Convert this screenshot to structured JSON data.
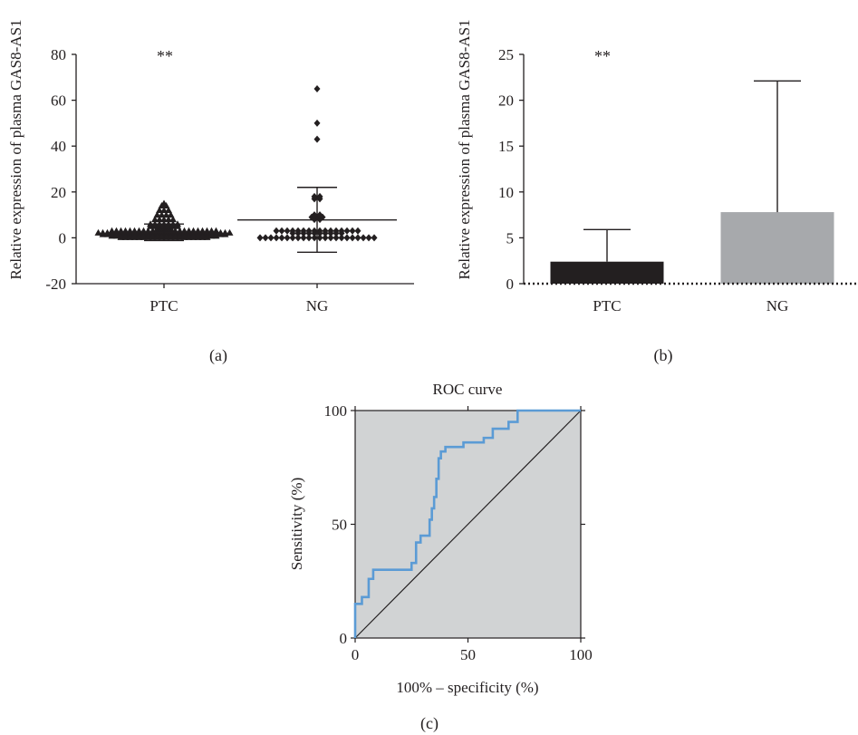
{
  "chart_data": [
    {
      "panel": "(a)",
      "type": "scatter",
      "significance": "**",
      "ylabel": "Relative expression of plasma GAS8-AS1",
      "ylim": [
        -20,
        80
      ],
      "yticks": [
        -20,
        0,
        20,
        40,
        60,
        80
      ],
      "categories": [
        "PTC",
        "NG"
      ],
      "groups": [
        {
          "name": "PTC",
          "marker": "triangle",
          "mean": 2.4,
          "error_low": -1.2,
          "error_high": 6.0,
          "points": [
            15,
            14,
            14,
            12,
            12,
            12,
            10,
            10,
            10,
            10,
            8,
            8,
            8,
            8,
            8,
            6,
            6,
            6,
            6,
            6,
            6,
            6,
            5,
            5,
            5,
            5,
            5,
            5,
            5,
            4,
            4,
            4,
            4,
            3,
            3,
            3,
            3,
            3,
            3,
            3,
            3,
            3,
            3,
            3,
            3,
            3,
            3,
            3,
            3,
            3,
            3,
            3,
            3,
            3,
            3,
            3,
            3,
            2.2,
            2.2,
            2.2,
            2.2,
            2.2,
            2.2,
            2.2,
            2.2,
            2.2,
            2.2,
            2.2,
            2.2,
            2.2,
            2.2,
            2.2,
            2.2,
            2.2,
            2.2,
            2.2,
            2.2,
            2.2,
            2.2,
            2.2,
            2.2,
            2.2,
            2.2,
            2.2,
            2.2,
            2.2,
            2.2,
            1.5,
            1.5,
            1.5,
            1.5,
            1.5,
            1.5,
            1.5,
            1.5,
            1.5,
            1.5,
            1.5,
            1.5,
            1.5,
            1.5,
            1.5,
            1.5,
            1.5,
            1.5,
            1.5,
            1.5,
            1.5,
            1.5,
            1.5,
            1.5,
            1.5,
            1.5,
            1.5,
            1.5,
            0.8,
            0.8,
            0.8,
            0.8,
            0.8,
            0.8,
            0.8,
            0.8,
            0.8,
            0.8,
            0.8,
            0.8,
            0.8,
            0.8,
            0.8,
            0.8,
            0.8,
            0.8,
            0.8,
            0.8,
            0.8,
            0.8,
            0.8,
            0.8,
            0.2,
            0.2,
            0.2,
            0.2,
            0.2,
            0.2,
            0.2,
            0.2,
            0.2,
            0.2,
            0.2,
            0.2,
            0.2,
            0.2,
            0.2,
            0.2,
            0.2,
            0.2,
            0.2,
            0.2
          ]
        },
        {
          "name": "NG",
          "marker": "diamond",
          "mean": 7.8,
          "error_low": -6.3,
          "error_high": 22.0,
          "points": [
            65,
            50,
            43,
            18,
            18,
            17,
            17,
            10,
            10,
            9,
            9,
            9,
            8,
            8,
            3,
            3,
            3,
            3,
            3,
            3,
            3,
            3,
            3,
            3,
            3,
            3,
            3,
            3,
            3,
            3,
            2,
            2,
            2,
            2,
            2,
            2,
            2,
            2,
            2,
            2,
            0,
            0,
            0,
            0,
            0,
            0,
            0,
            0,
            0,
            0,
            0,
            0,
            0,
            0,
            0,
            0,
            0,
            0,
            0,
            0,
            0,
            0
          ]
        }
      ]
    },
    {
      "panel": "(b)",
      "type": "bar",
      "significance": "**",
      "ylabel": "Relative expression of plasma GAS8-AS1",
      "ylim": [
        0,
        25
      ],
      "yticks": [
        0,
        5,
        10,
        15,
        20,
        25
      ],
      "categories": [
        "PTC",
        "NG"
      ],
      "values": [
        2.4,
        7.8
      ],
      "error_upper": [
        5.9,
        22.1
      ],
      "colors": [
        "#231f20",
        "#a7a9ac"
      ]
    },
    {
      "panel": "(c)",
      "type": "line",
      "title": "ROC curve",
      "xlabel": "100% – specificity (%)",
      "ylabel": "Sensitivity (%)",
      "xlim": [
        0,
        100
      ],
      "ylim": [
        0,
        100
      ],
      "ticks": [
        0,
        50,
        100
      ],
      "background": "#d1d3d4",
      "roc_color": "#5b9bd5",
      "roc_points": [
        [
          0,
          0
        ],
        [
          0,
          15
        ],
        [
          3,
          15
        ],
        [
          3,
          18
        ],
        [
          6,
          18
        ],
        [
          6,
          26
        ],
        [
          8,
          26
        ],
        [
          8,
          30
        ],
        [
          25,
          30
        ],
        [
          25,
          33
        ],
        [
          27,
          33
        ],
        [
          27,
          42
        ],
        [
          29,
          42
        ],
        [
          29,
          45
        ],
        [
          33,
          45
        ],
        [
          33,
          52
        ],
        [
          34,
          52
        ],
        [
          34,
          57
        ],
        [
          35,
          57
        ],
        [
          35,
          62
        ],
        [
          36,
          62
        ],
        [
          36,
          70
        ],
        [
          37,
          70
        ],
        [
          37,
          79
        ],
        [
          38,
          79
        ],
        [
          38,
          82
        ],
        [
          40,
          82
        ],
        [
          40,
          84
        ],
        [
          48,
          84
        ],
        [
          48,
          86
        ],
        [
          57,
          86
        ],
        [
          57,
          88
        ],
        [
          61,
          88
        ],
        [
          61,
          92
        ],
        [
          68,
          92
        ],
        [
          68,
          95
        ],
        [
          72,
          95
        ],
        [
          72,
          100
        ],
        [
          100,
          100
        ]
      ],
      "diagonal": [
        [
          0,
          0
        ],
        [
          100,
          100
        ]
      ]
    }
  ]
}
